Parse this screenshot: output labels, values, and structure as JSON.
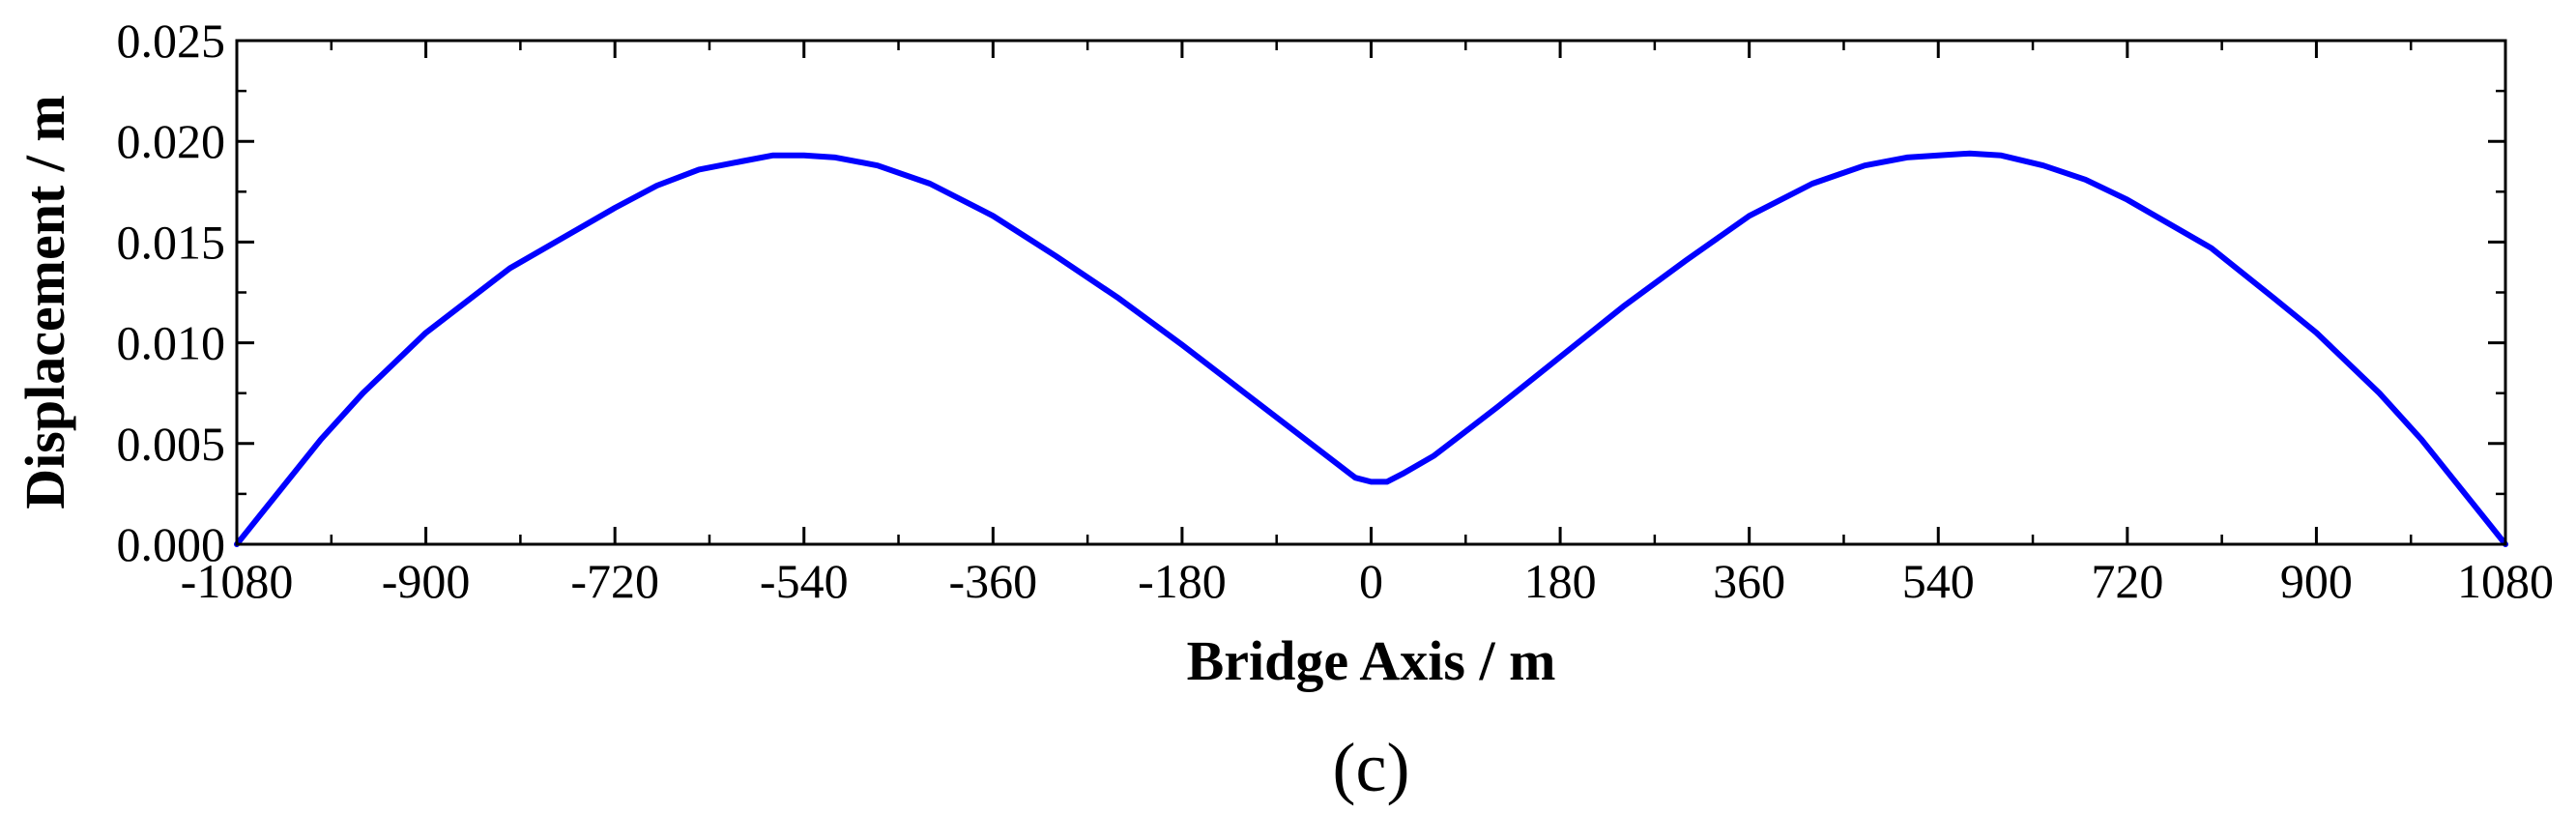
{
  "chart_data": {
    "type": "line",
    "xlabel": "Bridge Axis / m",
    "ylabel": "Displacement / m",
    "panel_label": "(c)",
    "xlim": [
      -1080,
      1080
    ],
    "ylim": [
      0,
      0.025
    ],
    "x_ticks": [
      -1080,
      -900,
      -720,
      -540,
      -360,
      -180,
      0,
      180,
      360,
      540,
      720,
      900,
      1080
    ],
    "x_tick_labels": [
      "-1080",
      "-900",
      "-720",
      "-540",
      "-360",
      "-180",
      "0",
      "180",
      "360",
      "540",
      "720",
      "900",
      "1080"
    ],
    "y_ticks": [
      0,
      0.005,
      0.01,
      0.015,
      0.02,
      0.025
    ],
    "y_tick_labels": [
      "0.000",
      "0.005",
      "0.010",
      "0.015",
      "0.020",
      "0.025"
    ],
    "grid": false,
    "legend": "none",
    "series": [
      {
        "color": "#0000ff",
        "x": [
          -1080,
          -1060,
          -1000,
          -960,
          -900,
          -820,
          -720,
          -680,
          -640,
          -600,
          -570,
          -540,
          -510,
          -470,
          -420,
          -360,
          -300,
          -240,
          -180,
          -120,
          -60,
          -20,
          -15,
          0,
          15,
          30,
          60,
          120,
          180,
          240,
          300,
          360,
          420,
          470,
          510,
          540,
          570,
          600,
          640,
          680,
          720,
          800,
          860,
          900,
          960,
          1000,
          1060,
          1080
        ],
        "y": [
          0,
          0.0013,
          0.0052,
          0.0075,
          0.0105,
          0.0137,
          0.0167,
          0.0178,
          0.0186,
          0.019,
          0.0193,
          0.0193,
          0.0192,
          0.0188,
          0.0179,
          0.0163,
          0.0143,
          0.0122,
          0.0099,
          0.0075,
          0.0051,
          0.0035,
          0.0033,
          0.0031,
          0.0031,
          0.0035,
          0.0044,
          0.0068,
          0.0093,
          0.0118,
          0.0141,
          0.0163,
          0.0179,
          0.0188,
          0.0192,
          0.0193,
          0.0194,
          0.0193,
          0.0188,
          0.0181,
          0.0171,
          0.0147,
          0.0122,
          0.0105,
          0.0075,
          0.0052,
          0.0013,
          0
        ]
      }
    ]
  }
}
